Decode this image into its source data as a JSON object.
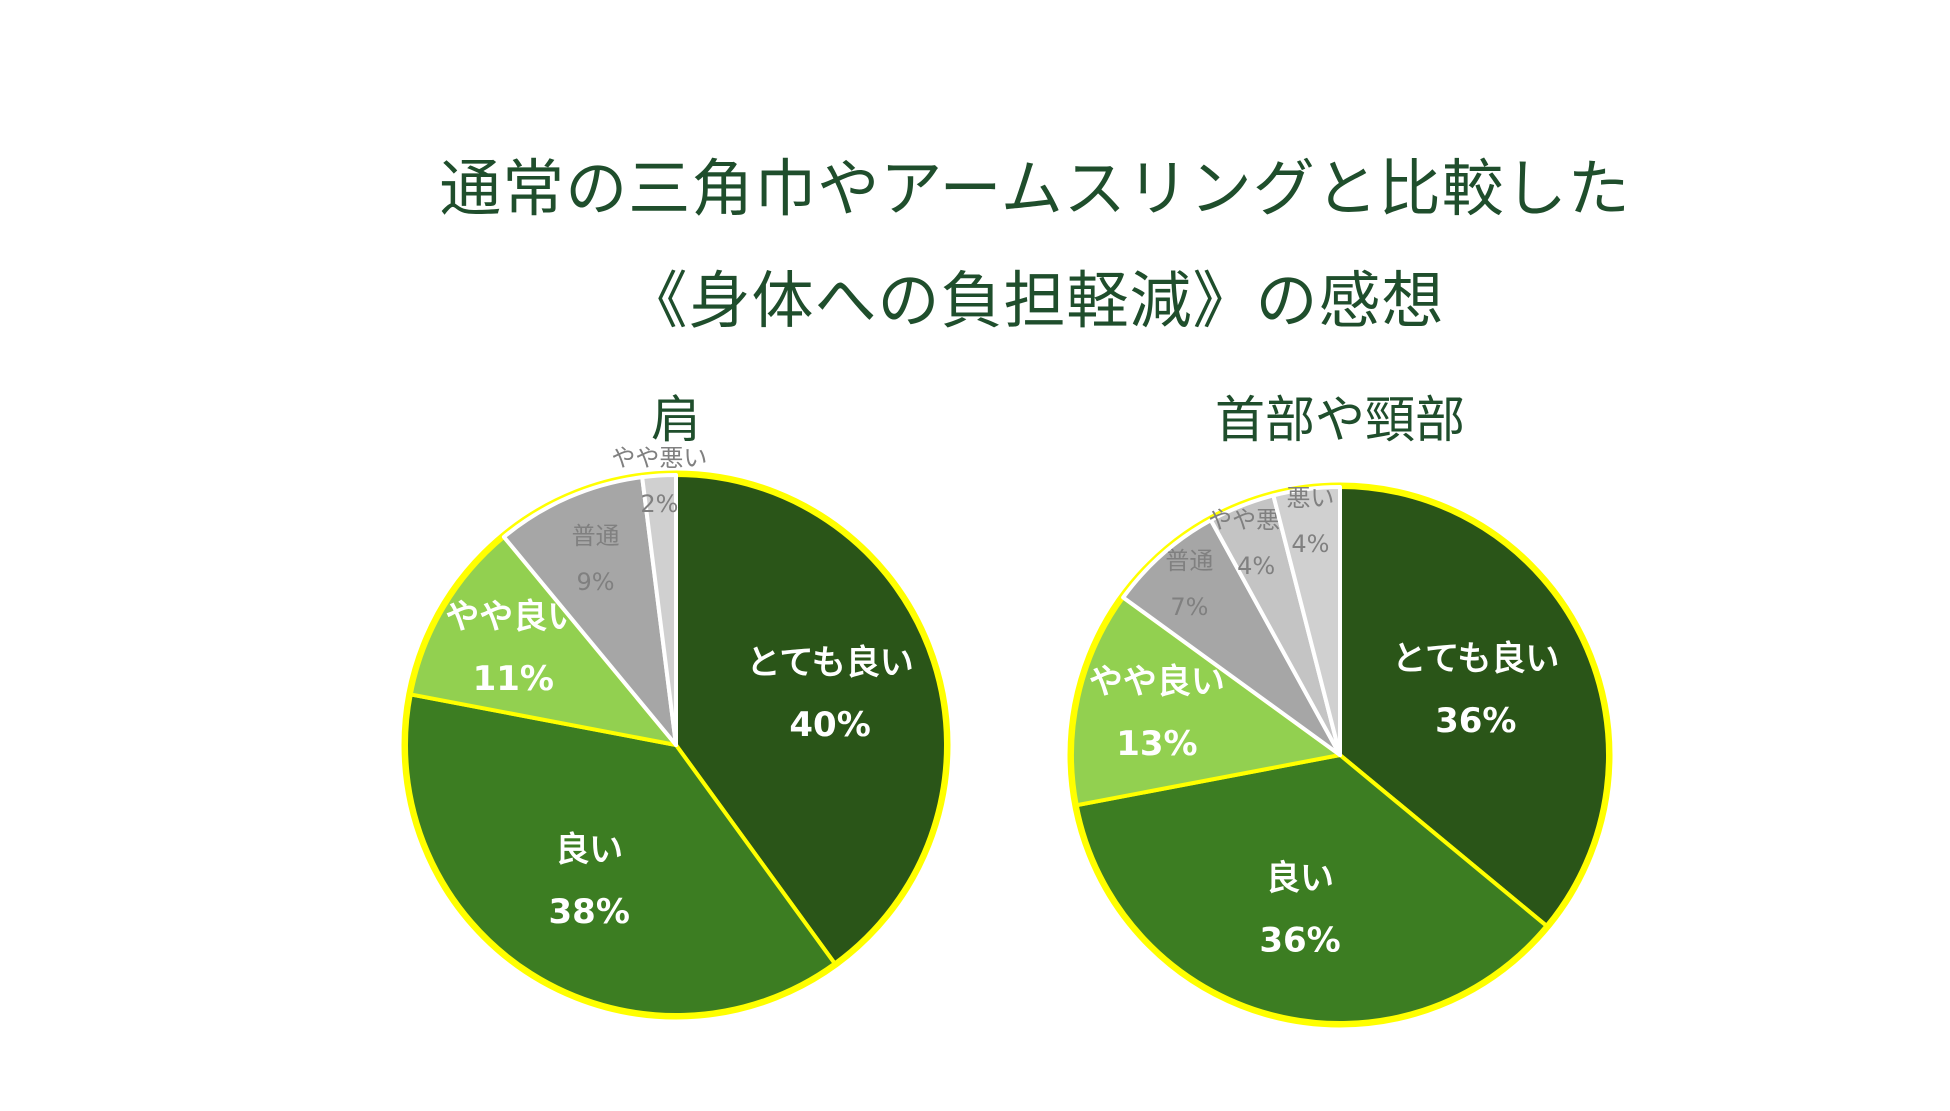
{
  "title_line_1": "通常の三角巾やアームスリングと比較した",
  "title_line_2": "《身体への負担軽減》の感想",
  "chart_data": [
    {
      "type": "pie",
      "title": "肩",
      "slices": [
        {
          "label": "とても良い",
          "value": 40,
          "value_text": "40%",
          "color": "#2a5518"
        },
        {
          "label": "良い",
          "value": 38,
          "value_text": "38%",
          "color": "#3c7d22"
        },
        {
          "label": "やや良い",
          "value": 11,
          "value_text": "11%",
          "color": "#92d050"
        },
        {
          "label": "普通",
          "value": 9,
          "value_text": "9%",
          "color": "#a6a6a6"
        },
        {
          "label": "やや悪い",
          "value": 2,
          "value_text": "2%",
          "color": "#d0d0d0"
        }
      ],
      "start_angle_deg": 0,
      "direction": "clockwise",
      "slice_border_color": "#ffff00"
    },
    {
      "type": "pie",
      "title": "首部や頸部",
      "slices": [
        {
          "label": "とても良い",
          "value": 36,
          "value_text": "36%",
          "color": "#2a5518"
        },
        {
          "label": "良い",
          "value": 36,
          "value_text": "36%",
          "color": "#3c7d22"
        },
        {
          "label": "やや良い",
          "value": 13,
          "value_text": "13%",
          "color": "#92d050"
        },
        {
          "label": "普通",
          "value": 7,
          "value_text": "7%",
          "color": "#a6a6a6"
        },
        {
          "label": "やや悪い",
          "value": 4,
          "value_text": "4%",
          "color": "#c4c4c4"
        },
        {
          "label": "悪い",
          "value": 4,
          "value_text": "4%",
          "color": "#d0d0d0"
        }
      ],
      "start_angle_deg": 0,
      "direction": "clockwise",
      "slice_border_color": "#ffff00"
    }
  ]
}
